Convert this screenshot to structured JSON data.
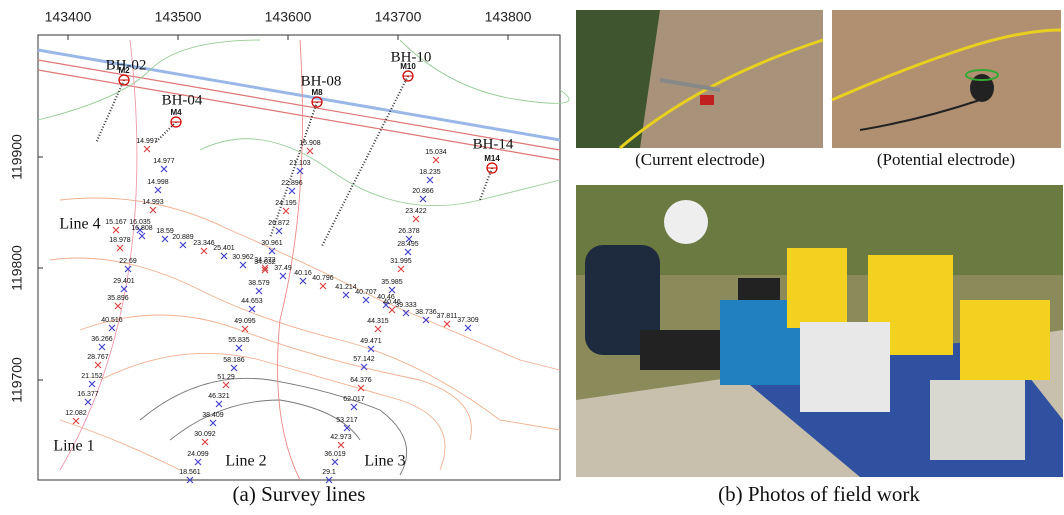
{
  "panel_a": {
    "x_ticks": [
      "143400",
      "143500",
      "143600",
      "143700",
      "143800"
    ],
    "y_ticks": [
      "119900",
      "119800",
      "119700"
    ],
    "boreholes": [
      {
        "label": "BH-02",
        "marker": "M2"
      },
      {
        "label": "BH-04",
        "marker": "M4"
      },
      {
        "label": "BH-08",
        "marker": "M8"
      },
      {
        "label": "BH-10",
        "marker": "M10"
      },
      {
        "label": "BH-14",
        "marker": "M14"
      }
    ],
    "lines": [
      {
        "label": "Line 1",
        "stations": [
          "15.167",
          "16.035",
          "16.808",
          "18.978",
          "22.69",
          "29.401",
          "35.896",
          "40.516",
          "36.266",
          "28.767",
          "21.152",
          "16.377",
          "12.082"
        ]
      },
      {
        "label": "Line 2",
        "stations": [
          "15.908",
          "21.103",
          "22.896",
          "24.195",
          "26.872",
          "30.961",
          "34.272",
          "38.579",
          "44.653",
          "49.095",
          "55.835",
          "58.186",
          "51.29",
          "46.321",
          "38.409",
          "30.092",
          "24.099",
          "18.561"
        ]
      },
      {
        "label": "Line 3",
        "stations": [
          "15.034",
          "18.235",
          "20.866",
          "23.422",
          "26.378",
          "28.495",
          "31.995",
          "35.985",
          "40.46",
          "44.315",
          "49.471",
          "57.142",
          "64.376",
          "62.017",
          "53.217",
          "42.973",
          "36.019",
          "29.1"
        ]
      },
      {
        "label": "Line 4",
        "stations": [
          "14.997",
          "14.977",
          "14.998",
          "14.993",
          "18.59",
          "20.889",
          "23.346",
          "25.401",
          "30.962",
          "34.032",
          "37.49",
          "40.16",
          "40.796",
          "41.214",
          "40.707",
          "40.46",
          "39.333",
          "38.736",
          "37.811",
          "37.309"
        ]
      }
    ],
    "caption": "(a) Survey lines"
  },
  "panel_b": {
    "photo_captions": [
      "(Current electrode)",
      "(Potential electrode)"
    ],
    "caption": "(b) Photos of field work"
  }
}
